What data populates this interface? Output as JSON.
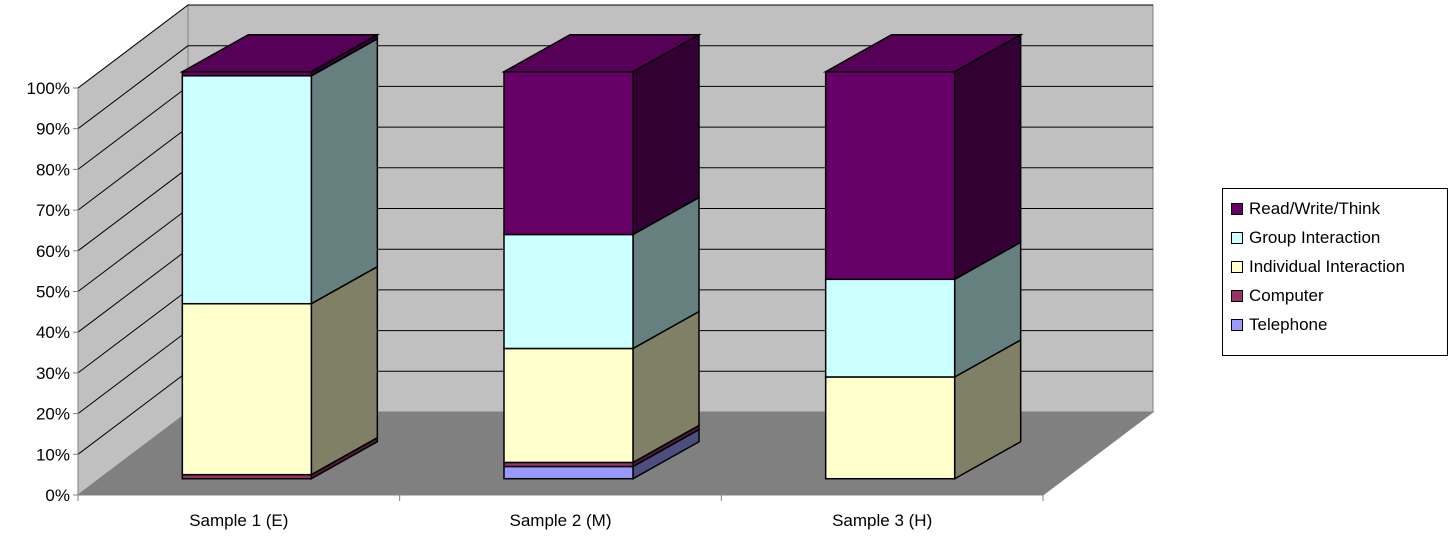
{
  "chart_data": {
    "type": "bar",
    "stacked": true,
    "three_d": true,
    "categories": [
      "Sample 1 (E)",
      "Sample 2 (M)",
      "Sample 3 (H)"
    ],
    "series": [
      {
        "name": "Telephone",
        "values": [
          0,
          3,
          0
        ],
        "color": "#9999ff"
      },
      {
        "name": "Computer",
        "values": [
          1,
          1,
          0
        ],
        "color": "#993366"
      },
      {
        "name": "Individual Interaction",
        "values": [
          42,
          28,
          25
        ],
        "color": "#ffffcc"
      },
      {
        "name": "Group Interaction",
        "values": [
          56,
          28,
          24
        ],
        "color": "#ccffff"
      },
      {
        "name": "Read/Write/Think",
        "values": [
          1,
          40,
          51
        ],
        "color": "#660066"
      }
    ],
    "y_ticks": [
      "0%",
      "10%",
      "20%",
      "30%",
      "40%",
      "50%",
      "60%",
      "70%",
      "80%",
      "90%",
      "100%"
    ],
    "ylim": [
      0,
      100
    ],
    "grid": true,
    "legend": "right",
    "legend_order": [
      "Read/Write/Think",
      "Group Interaction",
      "Individual Interaction",
      "Computer",
      "Telephone"
    ],
    "wall_color": "#c0c0c0",
    "floor_color": "#808080"
  }
}
